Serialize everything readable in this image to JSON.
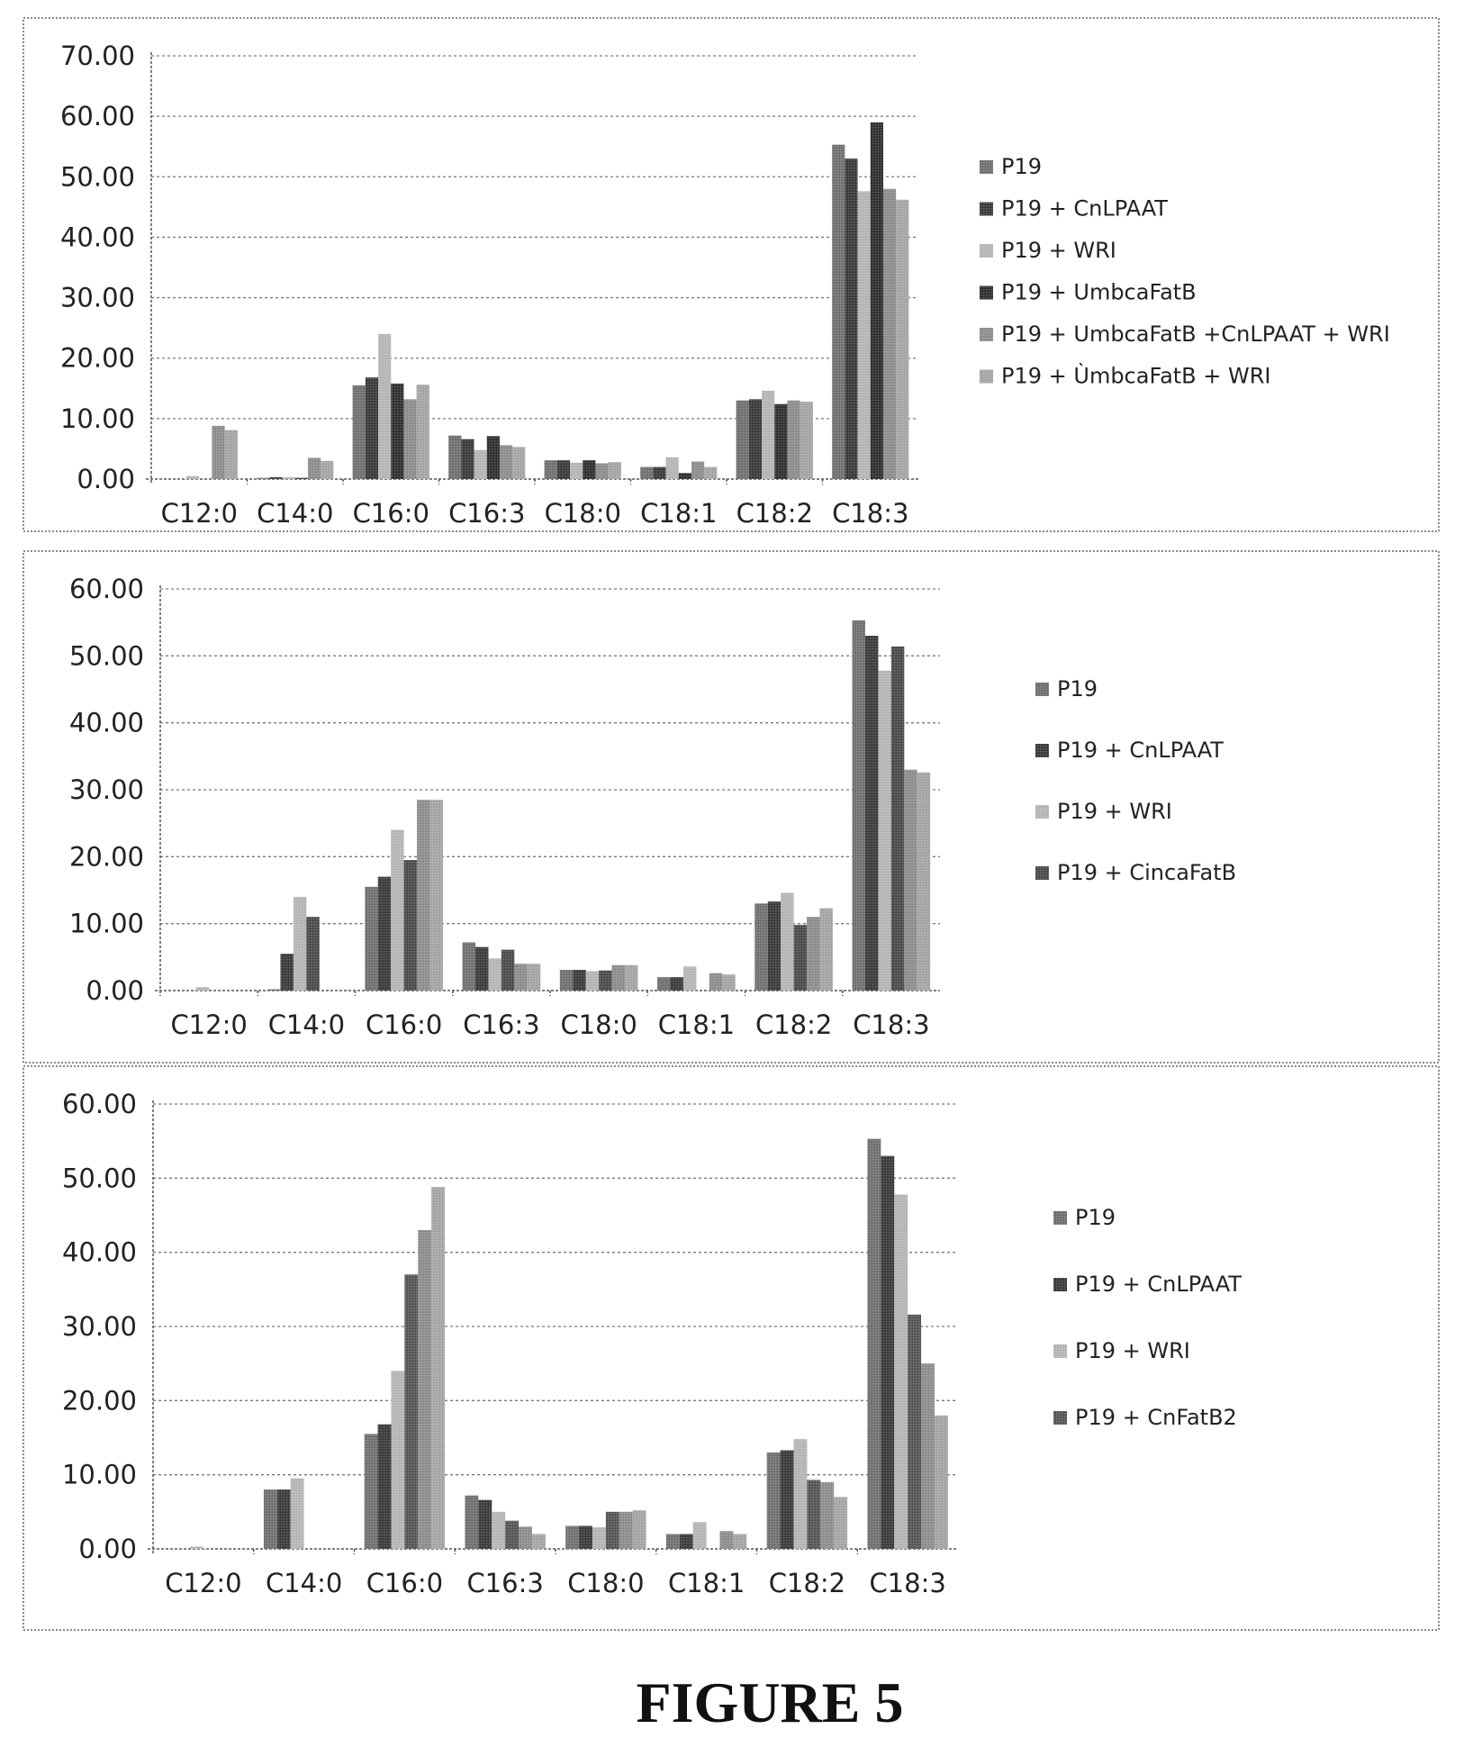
{
  "figure_caption": "FIGURE 5",
  "colors": {
    "P19": "#6f6f6f",
    "CnLPAAT": "#3a3a3a",
    "WRI": "#b4b4b4",
    "UmbcaFatB": "#2f2f2f",
    "CombinedAll": "#8c8c8c",
    "UmbcaWRI": "#a4a4a4",
    "CincaFatB": "#4a4a4a",
    "CnFatB2": "#555555"
  },
  "chart_data": [
    {
      "type": "bar",
      "title": "",
      "xlabel": "",
      "ylabel": "",
      "ylim": [
        0,
        70
      ],
      "yticks": [
        "0.00",
        "10.00",
        "20.00",
        "30.00",
        "40.00",
        "50.00",
        "60.00",
        "70.00"
      ],
      "grid": true,
      "legend_position": "right",
      "categories": [
        "C12:0",
        "C14:0",
        "C16:0",
        "C16:3",
        "C18:0",
        "C18:1",
        "C18:2",
        "C18:3"
      ],
      "series": [
        {
          "name": "P19",
          "color_key": "P19",
          "values": [
            0.0,
            0.2,
            15.5,
            7.2,
            3.1,
            2.0,
            13.0,
            55.3
          ]
        },
        {
          "name": "P19 + CnLPAAT",
          "color_key": "CnLPAAT",
          "values": [
            0.0,
            0.3,
            16.8,
            6.6,
            3.1,
            2.0,
            13.2,
            53.0
          ]
        },
        {
          "name": "P19 + WRI",
          "color_key": "WRI",
          "values": [
            0.5,
            0.3,
            24.0,
            4.8,
            2.7,
            3.6,
            14.6,
            47.6
          ]
        },
        {
          "name": "P19 + UmbcaFatB",
          "color_key": "UmbcaFatB",
          "values": [
            0.0,
            0.2,
            15.8,
            7.1,
            3.1,
            1.0,
            12.4,
            59.0
          ]
        },
        {
          "name": "P19 + UmbcaFatB +CnLPAAT + WRI",
          "color_key": "CombinedAll",
          "values": [
            8.8,
            3.5,
            13.2,
            5.6,
            2.6,
            2.9,
            13.0,
            48.0
          ]
        },
        {
          "name": "P19 + ÙmbcaFatB + WRI",
          "color_key": "UmbcaWRI",
          "values": [
            8.1,
            3.0,
            15.6,
            5.3,
            2.8,
            2.0,
            12.8,
            46.2
          ]
        }
      ]
    },
    {
      "type": "bar",
      "title": "",
      "xlabel": "",
      "ylabel": "",
      "ylim": [
        0,
        60
      ],
      "yticks": [
        "0.00",
        "10.00",
        "20.00",
        "30.00",
        "40.00",
        "50.00",
        "60.00"
      ],
      "grid": true,
      "legend_position": "right",
      "categories": [
        "C12:0",
        "C14:0",
        "C16:0",
        "C16:3",
        "C18:0",
        "C18:1",
        "C18:2",
        "C18:3"
      ],
      "series": [
        {
          "name": "P19",
          "color_key": "P19",
          "values": [
            0.0,
            0.2,
            15.5,
            7.2,
            3.1,
            2.0,
            13.0,
            55.3
          ]
        },
        {
          "name": "P19 + CnLPAAT",
          "color_key": "CnLPAAT",
          "values": [
            0.0,
            5.5,
            17.0,
            6.5,
            3.1,
            2.0,
            13.3,
            53.0
          ]
        },
        {
          "name": "P19 + WRI",
          "color_key": "WRI",
          "values": [
            0.5,
            14.0,
            24.0,
            4.8,
            2.9,
            3.6,
            14.6,
            47.8
          ]
        },
        {
          "name": "P19 + CincaFatB",
          "color_key": "CincaFatB",
          "values": [
            0.0,
            11.0,
            19.5,
            6.1,
            3.0,
            0.0,
            9.8,
            51.4
          ]
        },
        {
          "name": "",
          "color_key": "CombinedAll",
          "values": [
            0.0,
            0.0,
            28.5,
            4.0,
            3.8,
            2.6,
            11.0,
            33.0
          ]
        },
        {
          "name": "",
          "color_key": "UmbcaWRI",
          "values": [
            0.0,
            0.0,
            28.5,
            4.0,
            3.8,
            2.4,
            12.3,
            32.6
          ]
        }
      ]
    },
    {
      "type": "bar",
      "title": "",
      "xlabel": "",
      "ylabel": "",
      "ylim": [
        0,
        60
      ],
      "yticks": [
        "0.00",
        "10.00",
        "20.00",
        "30.00",
        "40.00",
        "50.00",
        "60.00"
      ],
      "grid": true,
      "legend_position": "right",
      "categories": [
        "C12:0",
        "C14:0",
        "C16:0",
        "C16:3",
        "C18:0",
        "C18:1",
        "C18:2",
        "C18:3"
      ],
      "series": [
        {
          "name": "P19",
          "color_key": "P19",
          "values": [
            0.0,
            8.0,
            15.5,
            7.2,
            3.1,
            2.0,
            13.0,
            55.3
          ]
        },
        {
          "name": "P19 + CnLPAAT",
          "color_key": "CnLPAAT",
          "values": [
            0.0,
            8.0,
            16.8,
            6.6,
            3.1,
            2.0,
            13.3,
            53.0
          ]
        },
        {
          "name": "P19 + WRI",
          "color_key": "WRI",
          "values": [
            0.3,
            9.5,
            24.0,
            5.0,
            2.9,
            3.6,
            14.8,
            47.8
          ]
        },
        {
          "name": "P19 + CnFatB2",
          "color_key": "CnFatB2",
          "values": [
            0.0,
            0.0,
            37.0,
            3.8,
            5.0,
            0.0,
            9.3,
            31.6
          ]
        },
        {
          "name": "",
          "color_key": "CombinedAll",
          "values": [
            0.0,
            0.0,
            43.0,
            3.0,
            5.0,
            2.4,
            9.0,
            25.0
          ]
        },
        {
          "name": "",
          "color_key": "UmbcaWRI",
          "values": [
            0.0,
            0.0,
            48.8,
            2.0,
            5.2,
            2.0,
            7.0,
            18.0
          ]
        }
      ]
    }
  ]
}
